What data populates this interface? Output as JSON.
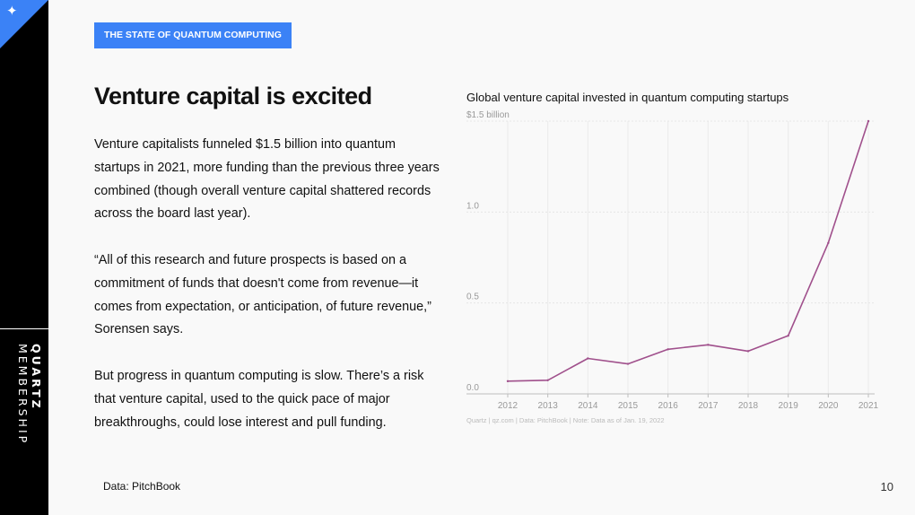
{
  "brand": {
    "bold": "QUARTZ",
    "rest": "MEMBERSHIP"
  },
  "tag": "THE STATE OF QUANTUM COMPUTING",
  "headline": "Venture capital is excited",
  "paragraphs": [
    "Venture capitalists funneled $1.5 billion into quantum startups in 2021, more funding than the previous three years combined (though overall venture capital shattered records across the board last year).",
    "“All of this research and future prospects is based on a commitment of funds that doesn't come from revenue—it comes from expectation, or anticipation, of future revenue,” Sorensen says.",
    "But progress in quantum computing is slow. There’s a risk that venture capital, used to the quick pace of major breakthroughs, could lose interest and pull funding."
  ],
  "source": "Data: PitchBook",
  "page_number": "10",
  "chart_data": {
    "type": "line",
    "title": "Global venture capital invested in quantum computing startups",
    "x": [
      "2012",
      "2013",
      "2014",
      "2015",
      "2016",
      "2017",
      "2018",
      "2019",
      "2020",
      "2021"
    ],
    "series": [
      {
        "values": [
          0.07,
          0.075,
          0.195,
          0.165,
          0.245,
          0.27,
          0.235,
          0.32,
          0.83,
          1.5
        ]
      }
    ],
    "y_ticks": [
      {
        "value": 0.0,
        "label": "0.0"
      },
      {
        "value": 0.5,
        "label": "0.5"
      },
      {
        "value": 1.0,
        "label": "1.0"
      },
      {
        "value": 1.5,
        "label": "$1.5 billion"
      }
    ],
    "ylim": [
      0,
      1.5
    ],
    "grid": true,
    "line_color": "#a0508c",
    "note": "Quartz | qz.com | Data: PitchBook | Note: Data as of Jan. 19, 2022"
  }
}
